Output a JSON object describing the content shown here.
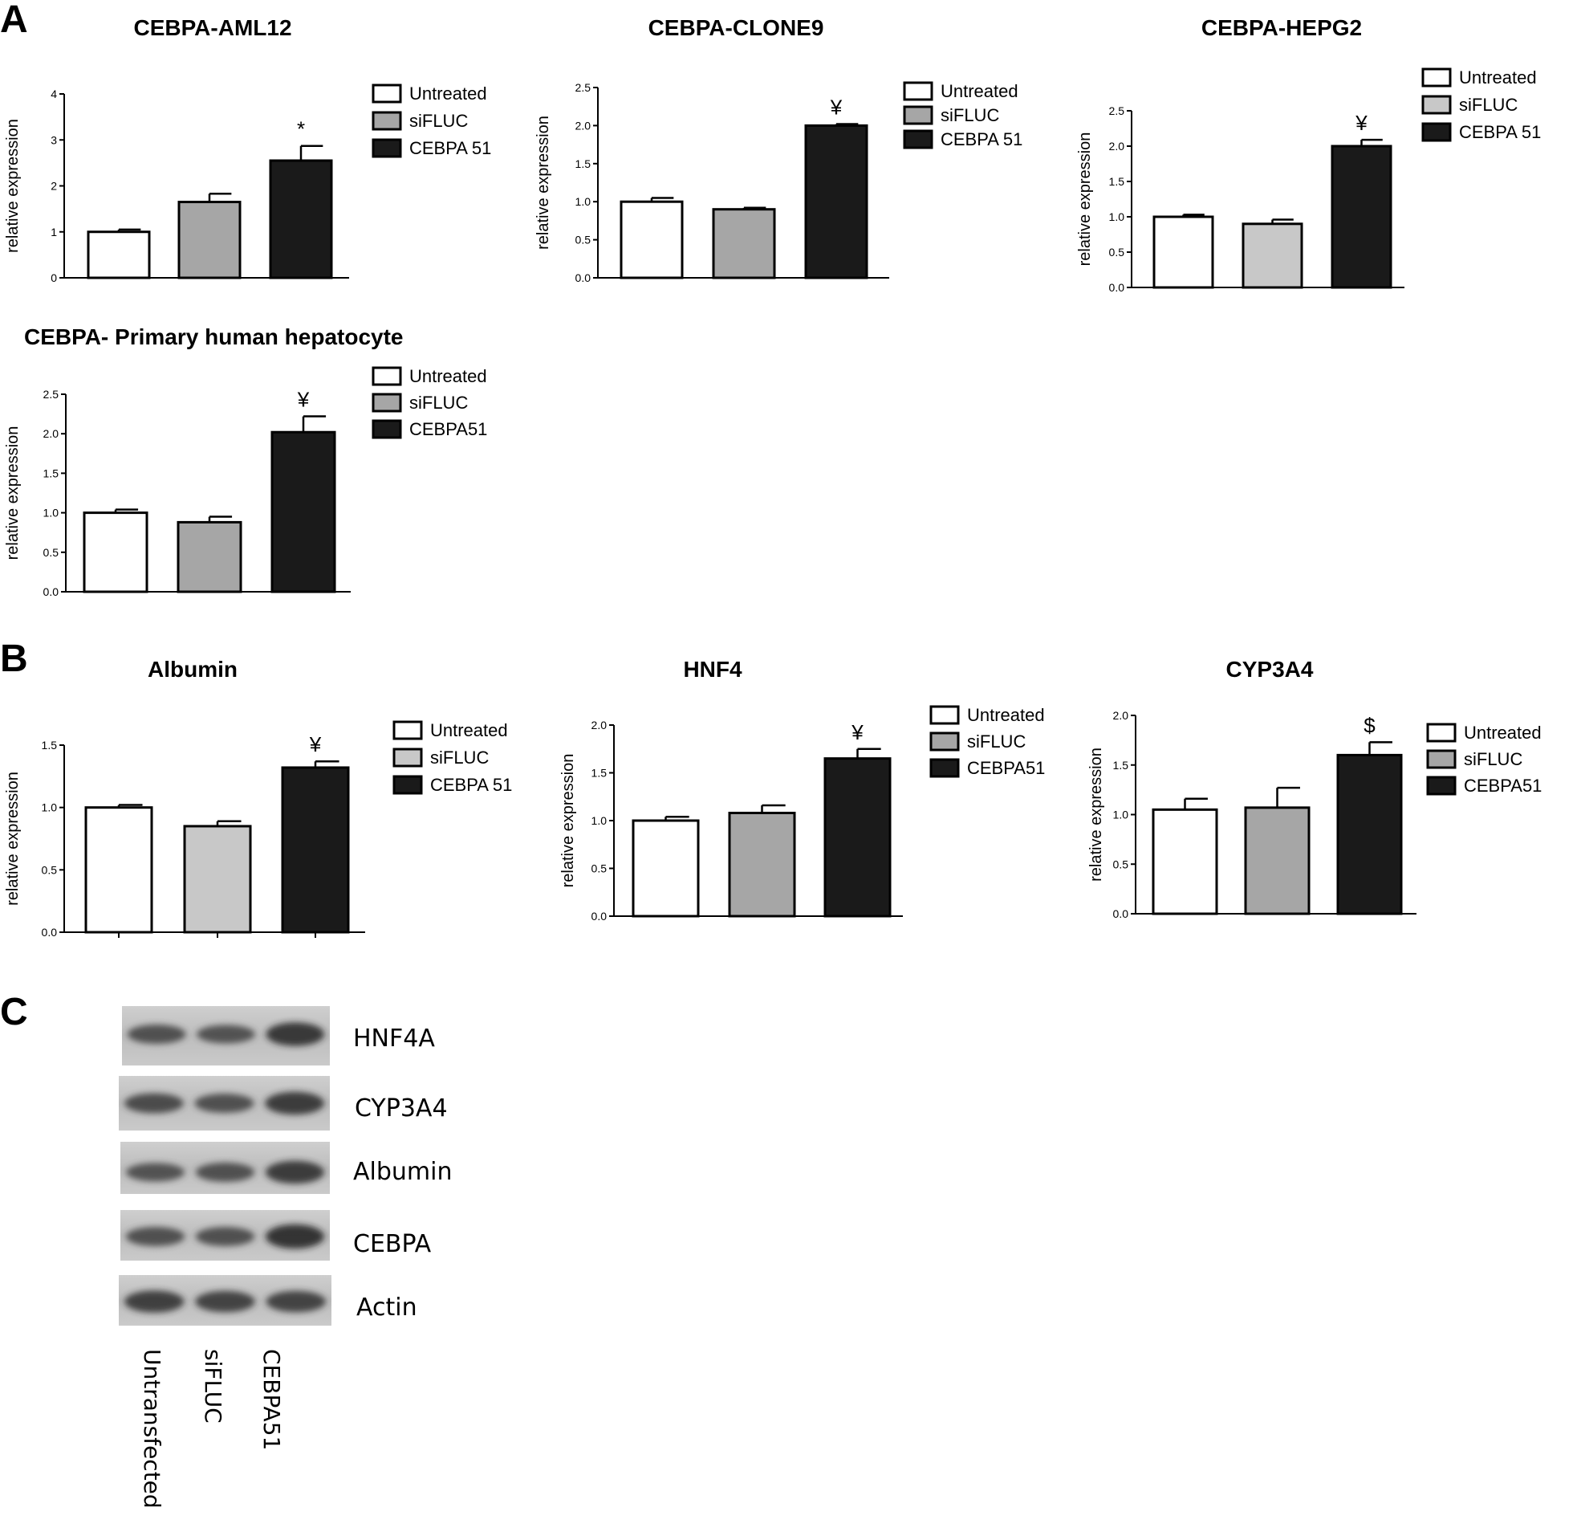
{
  "panels": {
    "a": "A",
    "b": "B",
    "c": "C"
  },
  "colors": {
    "untreated": "#ffffff",
    "sifluc": "#a6a6a6",
    "sifluc_light": "#c8c8c8",
    "cebpa": "#1a1a1a"
  },
  "chart_data": [
    {
      "id": "aml12",
      "type": "bar",
      "title": "CEBPA-AML12",
      "ylabel": "relative expression",
      "ylim": [
        0,
        4
      ],
      "yticks": [
        "0",
        "1",
        "2",
        "3",
        "4"
      ],
      "categories": [
        "Untreated",
        "siFLUC",
        "CEBPA 51"
      ],
      "values": [
        1.0,
        1.65,
        2.55
      ],
      "errors": [
        0.05,
        0.18,
        0.32
      ],
      "significance": [
        "",
        "",
        "*"
      ],
      "legend": [
        "Untreated",
        "siFLUC",
        "CEBPA 51"
      ]
    },
    {
      "id": "clone9",
      "type": "bar",
      "title": "CEBPA-CLONE9",
      "ylabel": "relative expression",
      "ylim": [
        0,
        2.5
      ],
      "yticks": [
        "0.0",
        "0.5",
        "1.0",
        "1.5",
        "2.0",
        "2.5"
      ],
      "categories": [
        "Untreated",
        "siFLUC",
        "CEBPA 51"
      ],
      "values": [
        1.0,
        0.9,
        2.0
      ],
      "errors": [
        0.05,
        0.02,
        0.02
      ],
      "significance": [
        "",
        "",
        "¥"
      ],
      "legend": [
        "Untreated",
        "siFLUC",
        "CEBPA 51"
      ]
    },
    {
      "id": "hepg2",
      "type": "bar",
      "title": "CEBPA-HEPG2",
      "ylabel": "relative expression",
      "ylim": [
        0,
        2.5
      ],
      "yticks": [
        "0.0",
        "0.5",
        "1.0",
        "1.5",
        "2.0",
        "2.5"
      ],
      "categories": [
        "Untreated",
        "siFLUC",
        "CEBPA 51"
      ],
      "values": [
        1.0,
        0.9,
        2.0
      ],
      "errors": [
        0.03,
        0.06,
        0.09
      ],
      "significance": [
        "",
        "",
        "¥"
      ],
      "legend": [
        "Untreated",
        "siFLUC",
        "CEBPA 51"
      ]
    },
    {
      "id": "primary",
      "type": "bar",
      "title": "CEBPA- Primary human hepatocyte",
      "ylabel": "relative expression",
      "ylim": [
        0,
        2.5
      ],
      "yticks": [
        "0.0",
        "0.5",
        "1.0",
        "1.5",
        "2.0",
        "2.5"
      ],
      "categories": [
        "Untreated",
        "siFLUC",
        "CEBPA51"
      ],
      "values": [
        1.0,
        0.88,
        2.02
      ],
      "errors": [
        0.04,
        0.07,
        0.2
      ],
      "significance": [
        "",
        "",
        "¥"
      ],
      "legend": [
        "Untreated",
        "siFLUC",
        "CEBPA51"
      ]
    },
    {
      "id": "albumin",
      "type": "bar",
      "title": "Albumin",
      "ylabel": "relative expression",
      "ylim": [
        0,
        1.5
      ],
      "yticks": [
        "0.0",
        "0.5",
        "1.0",
        "1.5"
      ],
      "categories": [
        "Untreated",
        "siFLUC",
        "CEBPA 51"
      ],
      "values": [
        1.0,
        0.85,
        1.32
      ],
      "errors": [
        0.02,
        0.04,
        0.05
      ],
      "significance": [
        "",
        "",
        "¥"
      ],
      "legend": [
        "Untreated",
        "siFLUC",
        "CEBPA 51"
      ]
    },
    {
      "id": "hnf4",
      "type": "bar",
      "title": "HNF4",
      "ylabel": "relative expression",
      "ylim": [
        0,
        2.0
      ],
      "yticks": [
        "0.0",
        "0.5",
        "1.0",
        "1.5",
        "2.0"
      ],
      "categories": [
        "Untreated",
        "siFLUC",
        "CEBPA51"
      ],
      "values": [
        1.0,
        1.08,
        1.65
      ],
      "errors": [
        0.04,
        0.08,
        0.1
      ],
      "significance": [
        "",
        "",
        "¥"
      ],
      "legend": [
        "Untreated",
        "siFLUC",
        "CEBPA51"
      ]
    },
    {
      "id": "cyp3a4",
      "type": "bar",
      "title": "CYP3A4",
      "ylabel": "relative expression",
      "ylim": [
        0,
        2.0
      ],
      "yticks": [
        "0.0",
        "0.5",
        "1.0",
        "1.5",
        "2.0"
      ],
      "categories": [
        "Untreated",
        "siFLUC",
        "CEBPA51"
      ],
      "values": [
        1.05,
        1.07,
        1.6
      ],
      "errors": [
        0.11,
        0.2,
        0.13
      ],
      "significance": [
        "",
        "",
        "$"
      ],
      "legend": [
        "Untreated",
        "siFLUC",
        "CEBPA51"
      ]
    }
  ],
  "blot": {
    "bands": [
      "HNF4A",
      "CYP3A4",
      "Albumin",
      "CEBPA",
      "Actin"
    ],
    "lanes": [
      "Untransfected",
      "siFLUC",
      "CEBPA51"
    ]
  }
}
